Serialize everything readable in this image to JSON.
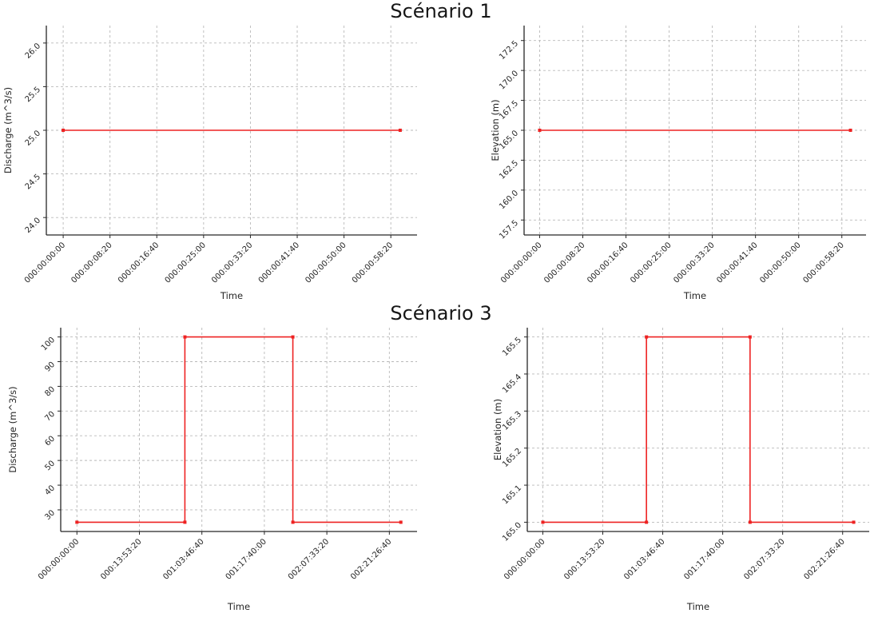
{
  "titles": {
    "scenario1": "Scénario 1",
    "scenario3": "Scénario 3"
  },
  "chart_data": [
    {
      "id": "scenario1-discharge",
      "type": "line",
      "xlabel": "Time",
      "ylabel": "Discharge (m^3/s)",
      "grid": true,
      "legend": null,
      "line_color": "#ee2222",
      "xlim": [
        -180,
        3780
      ],
      "ylim": [
        23.8,
        26.2
      ],
      "xticks": {
        "values": [
          0,
          500,
          1000,
          1500,
          2000,
          2500,
          3000,
          3500
        ],
        "labels": [
          "000:00:00:00",
          "000:00:08:20",
          "000:00:16:40",
          "000:00:25:00",
          "000:00:33:20",
          "000:00:41:40",
          "000:00:50:00",
          "000:00:58:20"
        ]
      },
      "yticks": {
        "values": [
          24.0,
          24.5,
          25.0,
          25.5,
          26.0
        ],
        "labels": [
          "24.0",
          "24.5",
          "25.0",
          "25.5",
          "26.0"
        ]
      },
      "series": [
        {
          "name": "discharge",
          "x": [
            0,
            3600
          ],
          "y": [
            25.0,
            25.0
          ]
        }
      ]
    },
    {
      "id": "scenario1-elevation",
      "type": "line",
      "xlabel": "Time",
      "ylabel": "Elevation (m)",
      "grid": true,
      "legend": null,
      "line_color": "#ee2222",
      "xlim": [
        -180,
        3780
      ],
      "ylim": [
        156.25,
        173.75
      ],
      "xticks": {
        "values": [
          0,
          500,
          1000,
          1500,
          2000,
          2500,
          3000,
          3500
        ],
        "labels": [
          "000:00:00:00",
          "000:00:08:20",
          "000:00:16:40",
          "000:00:25:00",
          "000:00:33:20",
          "000:00:41:40",
          "000:00:50:00",
          "000:00:58:20"
        ]
      },
      "yticks": {
        "values": [
          157.5,
          160.0,
          162.5,
          165.0,
          167.5,
          170.0,
          172.5
        ],
        "labels": [
          "157.5",
          "160.0",
          "162.5",
          "165.0",
          "167.5",
          "170.0",
          "172.5"
        ]
      },
      "series": [
        {
          "name": "elevation",
          "x": [
            0,
            3600
          ],
          "y": [
            165.0,
            165.0
          ]
        }
      ]
    },
    {
      "id": "scenario3-discharge",
      "type": "line",
      "xlabel": "Time",
      "ylabel": "Discharge (m^3/s)",
      "grid": true,
      "legend": null,
      "line_color": "#ee2222",
      "xlim": [
        -12960,
        272160
      ],
      "ylim": [
        21.25,
        103.75
      ],
      "xticks": {
        "values": [
          0,
          50000,
          100000,
          150000,
          200000,
          250000
        ],
        "labels": [
          "000:00:00:00",
          "000:13:53:20",
          "001:03:46:40",
          "001:17:40:00",
          "002:07:33:20",
          "002:21:26:40"
        ]
      },
      "yticks": {
        "values": [
          30,
          40,
          50,
          60,
          70,
          80,
          90,
          100
        ],
        "labels": [
          "30",
          "40",
          "50",
          "60",
          "70",
          "80",
          "90",
          "100"
        ]
      },
      "series": [
        {
          "name": "discharge",
          "x": [
            0,
            86400,
            86400,
            172800,
            172800,
            259200
          ],
          "y": [
            25,
            25,
            100,
            100,
            25,
            25
          ]
        }
      ]
    },
    {
      "id": "scenario3-elevation",
      "type": "line",
      "xlabel": "Time",
      "ylabel": "Elevation (m)",
      "grid": true,
      "legend": null,
      "line_color": "#ee2222",
      "xlim": [
        -12960,
        272160
      ],
      "ylim": [
        164.975,
        165.525
      ],
      "xticks": {
        "values": [
          0,
          50000,
          100000,
          150000,
          200000,
          250000
        ],
        "labels": [
          "000:00:00:00",
          "000:13:53:20",
          "001:03:46:40",
          "001:17:40:00",
          "002:07:33:20",
          "002:21:26:40"
        ]
      },
      "yticks": {
        "values": [
          165.0,
          165.1,
          165.2,
          165.3,
          165.4,
          165.5
        ],
        "labels": [
          "165.0",
          "165.1",
          "165.2",
          "165.3",
          "165.4",
          "165.5"
        ]
      },
      "series": [
        {
          "name": "elevation",
          "x": [
            0,
            86400,
            86400,
            172800,
            172800,
            259200
          ],
          "y": [
            165.0,
            165.0,
            165.5,
            165.5,
            165.0,
            165.0
          ]
        }
      ]
    }
  ]
}
